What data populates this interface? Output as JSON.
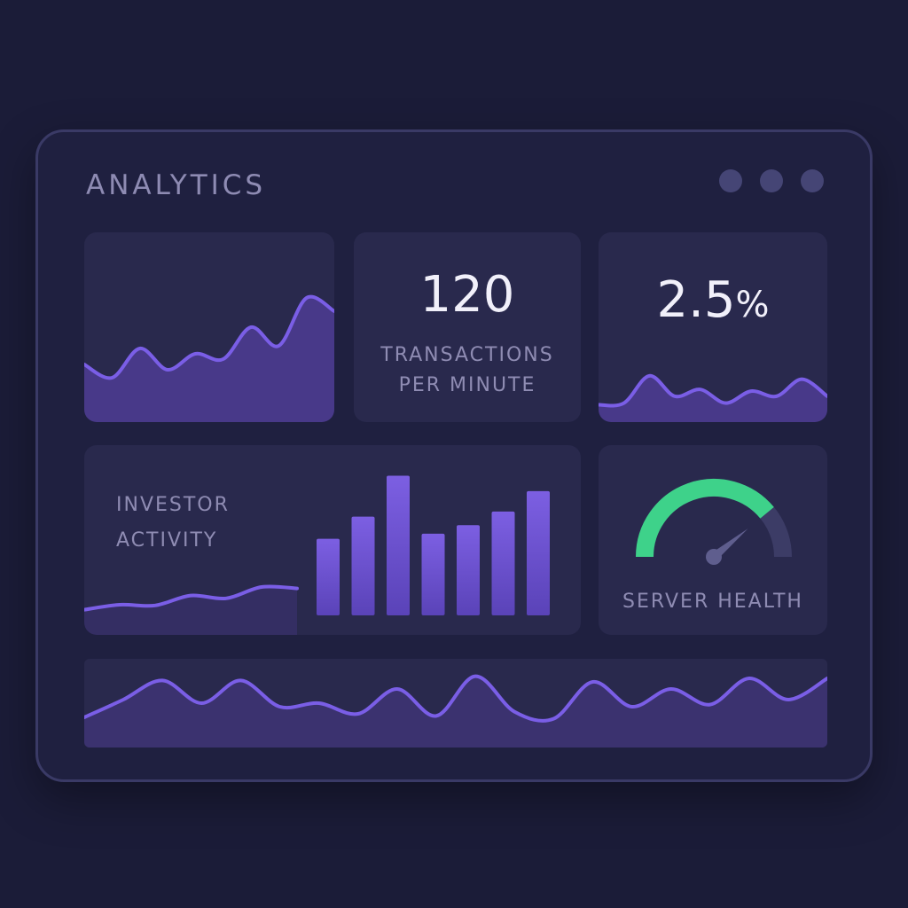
{
  "window": {
    "title": "ANALYTICS",
    "controls": [
      "menu-dot-1",
      "menu-dot-2",
      "menu-dot-3"
    ]
  },
  "kpis": {
    "transactions": {
      "value": "120",
      "label_line1": "TRANSACTIONS",
      "label_line2": "PER MINUTE"
    },
    "rate": {
      "value": "2.5",
      "unit": "%"
    }
  },
  "investor_activity": {
    "label_line1": "INVESTOR",
    "label_line2": "ACTIVITY"
  },
  "server_health": {
    "label": "SERVER HEALTH",
    "level": 0.78
  },
  "colors": {
    "accent": "#7a5ee6",
    "area": "#4a3a8c",
    "gauge_good": "#3ed28a",
    "gauge_bg": "#3c3c66"
  },
  "chart_data": [
    {
      "type": "area",
      "series": [
        {
          "values": [
            30,
            20,
            42,
            26,
            38,
            34,
            58,
            44,
            80,
            70
          ]
        }
      ],
      "ylim": [
        0,
        100
      ]
    },
    {
      "type": "area",
      "series": [
        {
          "values": [
            12,
            14,
            46,
            22,
            30,
            14,
            28,
            22,
            42,
            22
          ]
        }
      ],
      "ylim": [
        0,
        100
      ]
    },
    {
      "type": "bar",
      "values": [
        45,
        58,
        82,
        48,
        53,
        61,
        73
      ],
      "ylim": [
        0,
        100
      ]
    },
    {
      "type": "line",
      "series": [
        {
          "values": [
            18,
            25,
            24,
            38,
            34,
            50,
            48
          ]
        }
      ],
      "ylim": [
        0,
        100
      ]
    },
    {
      "type": "area",
      "series": [
        {
          "values": [
            30,
            55,
            82,
            50,
            82,
            45,
            50,
            35,
            70,
            32,
            88,
            38,
            28,
            80,
            45,
            70,
            48,
            85,
            55,
            85
          ]
        }
      ],
      "ylim": [
        0,
        100
      ]
    }
  ]
}
